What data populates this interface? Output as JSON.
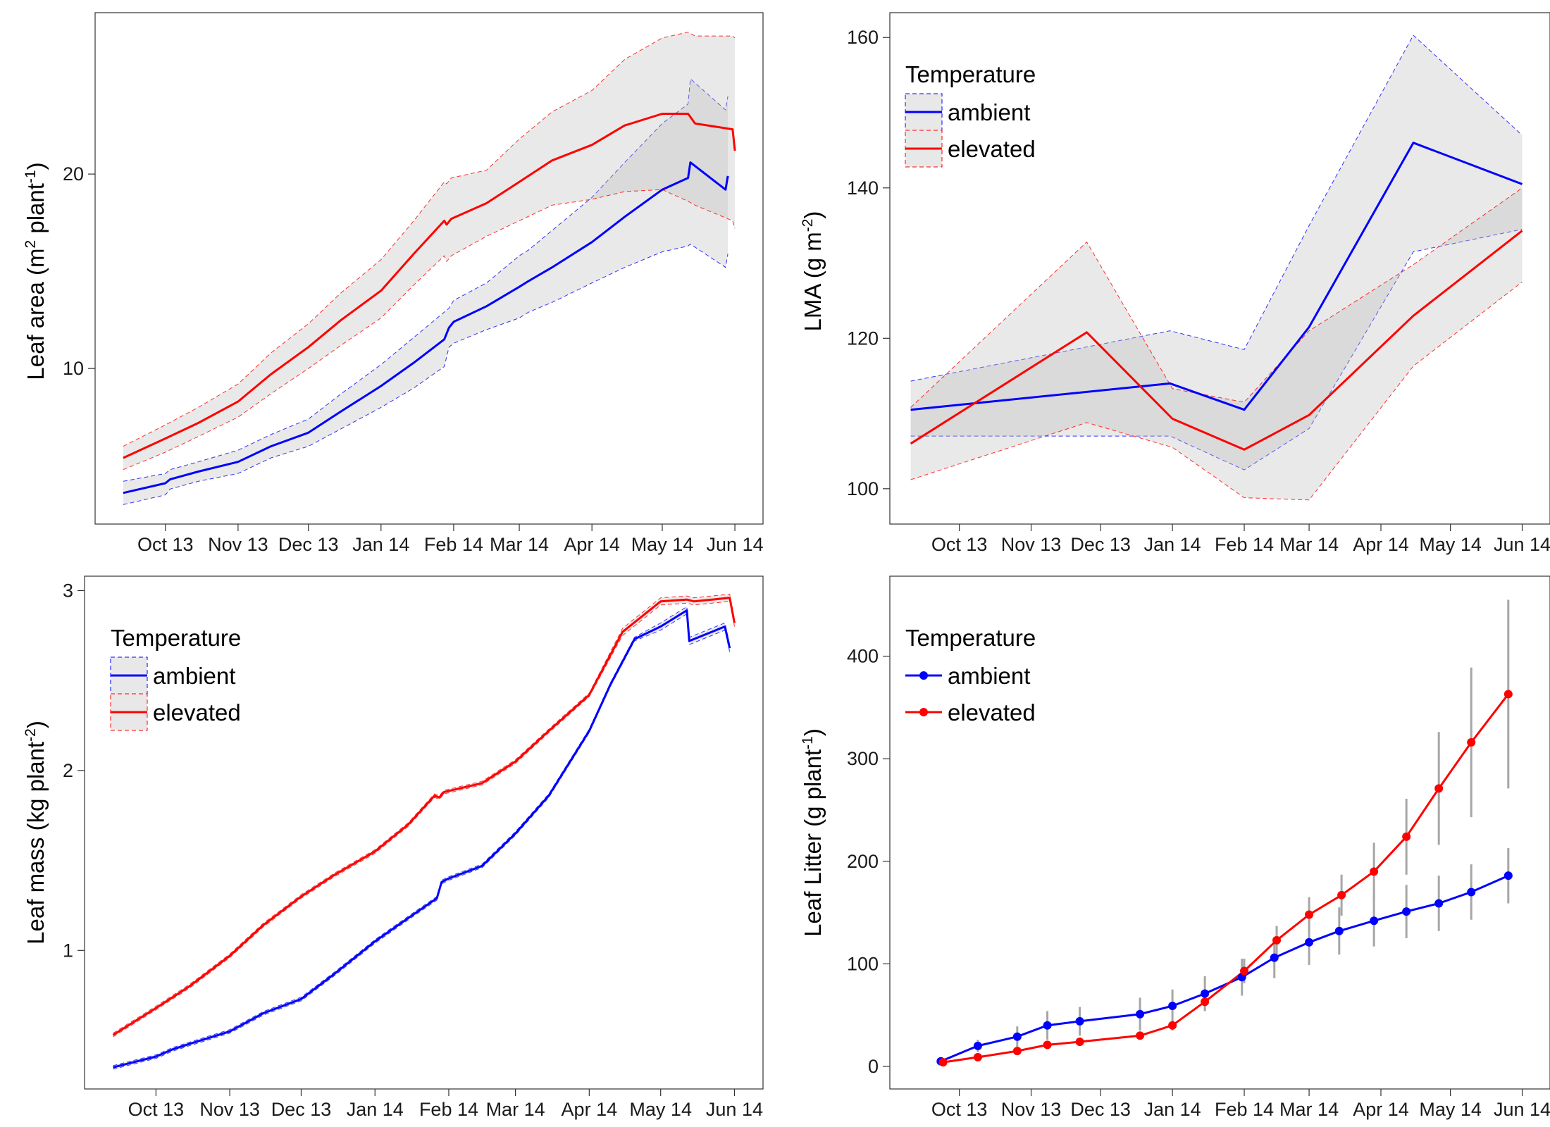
{
  "figure": {
    "background": "#ffffff",
    "colors": {
      "ambient": "#0000ff",
      "elevated": "#ff0000",
      "ribbon_fill": "#bdbdbd",
      "error_bar": "#a6a6a6",
      "panel_border": "#333333"
    }
  },
  "chart_data": [
    {
      "type": "line",
      "panel": "top-left",
      "title": "",
      "ylabel": {
        "main": "Leaf area (m",
        "sup1": "2",
        "mid": " plant",
        "sup2": "-1",
        "end": ")"
      },
      "x_ticks": [
        {
          "label": "Oct 13",
          "date": "2013-10-01"
        },
        {
          "label": "Nov 13",
          "date": "2013-11-01"
        },
        {
          "label": "Dec 13",
          "date": "2013-12-01"
        },
        {
          "label": "Jan 14",
          "date": "2014-01-01"
        },
        {
          "label": "Feb 14",
          "date": "2014-02-01"
        },
        {
          "label": "Mar 14",
          "date": "2014-03-01"
        },
        {
          "label": "Apr 14",
          "date": "2014-04-01"
        },
        {
          "label": "May 14",
          "date": "2014-05-01"
        },
        {
          "label": "Jun 14",
          "date": "2014-06-01"
        }
      ],
      "xlim": [
        "2013-09-01",
        "2014-06-13"
      ],
      "y_ticks": [
        10,
        20
      ],
      "ylim": [
        2.0,
        28.3
      ],
      "series": [
        {
          "name": "ambient",
          "color": "#0000ff",
          "x": [
            "2013-09-13",
            "2013-10-01",
            "2013-10-03",
            "2013-10-15",
            "2013-11-01",
            "2013-11-15",
            "2013-12-01",
            "2013-12-15",
            "2014-01-01",
            "2014-01-15",
            "2014-01-28",
            "2014-01-30",
            "2014-02-01",
            "2014-02-15",
            "2014-03-01",
            "2014-03-05",
            "2014-03-15",
            "2014-04-01",
            "2014-04-15",
            "2014-05-01",
            "2014-05-12",
            "2014-05-13",
            "2014-05-28",
            "2014-05-29"
          ],
          "y": [
            3.6,
            4.1,
            4.3,
            4.7,
            5.2,
            6.0,
            6.7,
            7.8,
            9.1,
            10.3,
            11.5,
            12.1,
            12.4,
            13.2,
            14.2,
            14.5,
            15.2,
            16.5,
            17.8,
            19.2,
            19.8,
            20.6,
            19.2,
            19.9
          ],
          "lower": [
            3.0,
            3.5,
            3.8,
            4.2,
            4.6,
            5.4,
            6.0,
            6.9,
            8.0,
            9.0,
            10.1,
            11.1,
            11.3,
            12.0,
            12.6,
            12.9,
            13.4,
            14.4,
            15.2,
            16.0,
            16.3,
            16.4,
            15.2,
            15.9
          ],
          "upper": [
            4.2,
            4.6,
            4.8,
            5.2,
            5.8,
            6.6,
            7.4,
            8.7,
            10.2,
            11.6,
            12.9,
            13.1,
            13.5,
            14.4,
            15.8,
            16.1,
            17.1,
            18.8,
            20.6,
            22.6,
            23.6,
            24.9,
            23.3,
            24.0
          ]
        },
        {
          "name": "elevated",
          "color": "#ff0000",
          "x": [
            "2013-09-13",
            "2013-10-01",
            "2013-10-15",
            "2013-11-01",
            "2013-11-15",
            "2013-12-01",
            "2013-12-15",
            "2014-01-01",
            "2014-01-15",
            "2014-01-28",
            "2014-01-29",
            "2014-01-31",
            "2014-02-15",
            "2014-03-01",
            "2014-03-15",
            "2014-04-01",
            "2014-04-15",
            "2014-05-01",
            "2014-05-12",
            "2014-05-15",
            "2014-05-31",
            "2014-06-01"
          ],
          "y": [
            5.4,
            6.4,
            7.2,
            8.3,
            9.7,
            11.1,
            12.5,
            14.0,
            15.9,
            17.6,
            17.4,
            17.7,
            18.5,
            19.6,
            20.7,
            21.5,
            22.5,
            23.1,
            23.1,
            22.6,
            22.3,
            21.2
          ],
          "lower": [
            4.8,
            5.7,
            6.5,
            7.5,
            8.7,
            10.0,
            11.2,
            12.6,
            14.3,
            15.8,
            15.5,
            15.8,
            16.8,
            17.6,
            18.4,
            18.7,
            19.1,
            19.2,
            18.6,
            18.4,
            17.6,
            17.2
          ],
          "upper": [
            6.0,
            7.1,
            8.0,
            9.2,
            10.8,
            12.3,
            13.9,
            15.6,
            17.6,
            19.6,
            19.5,
            19.8,
            20.2,
            21.8,
            23.2,
            24.3,
            25.9,
            27.0,
            27.3,
            27.1,
            27.1,
            27.0
          ]
        }
      ]
    },
    {
      "type": "line",
      "panel": "top-right",
      "title": "",
      "ylabel": {
        "main": "LMA (g m",
        "sup1": "-2",
        "end": ")"
      },
      "x_ticks": [
        {
          "label": "Oct 13",
          "date": "2013-10-01"
        },
        {
          "label": "Nov 13",
          "date": "2013-11-01"
        },
        {
          "label": "Dec 13",
          "date": "2013-12-01"
        },
        {
          "label": "Jan 14",
          "date": "2014-01-01"
        },
        {
          "label": "Feb 14",
          "date": "2014-02-01"
        },
        {
          "label": "Mar 14",
          "date": "2014-03-01"
        },
        {
          "label": "Apr 14",
          "date": "2014-04-01"
        },
        {
          "label": "May 14",
          "date": "2014-05-01"
        },
        {
          "label": "Jun 14",
          "date": "2014-06-01"
        }
      ],
      "xlim": [
        "2013-09-01",
        "2014-06-13"
      ],
      "y_ticks": [
        100,
        120,
        140,
        160
      ],
      "ylim": [
        95.3,
        163.3
      ],
      "legend": {
        "title": "Temperature",
        "position": "top-left",
        "items": [
          "ambient",
          "elevated"
        ]
      },
      "series": [
        {
          "name": "ambient",
          "color": "#0000ff",
          "x": [
            "2013-09-10",
            "2013-12-31",
            "2014-02-01",
            "2014-03-01",
            "2014-04-15",
            "2014-06-01"
          ],
          "y": [
            110.5,
            114.0,
            110.5,
            121.5,
            146.0,
            140.5
          ],
          "lower": [
            107.0,
            107.0,
            102.5,
            108.0,
            131.5,
            134.5
          ],
          "upper": [
            114.3,
            121.0,
            118.5,
            135.0,
            160.3,
            147.0
          ]
        },
        {
          "name": "elevated",
          "color": "#ff0000",
          "x": [
            "2013-09-10",
            "2013-11-25",
            "2014-01-01",
            "2014-02-01",
            "2014-03-01",
            "2014-04-15",
            "2014-06-01"
          ],
          "y": [
            106.0,
            120.8,
            109.3,
            105.2,
            109.8,
            123.0,
            134.3
          ],
          "lower": [
            101.2,
            108.8,
            105.5,
            98.8,
            98.5,
            116.3,
            127.5
          ],
          "upper": [
            110.8,
            132.8,
            113.3,
            111.5,
            121.0,
            129.8,
            140.0
          ]
        }
      ]
    },
    {
      "type": "line",
      "panel": "bottom-left",
      "title": "",
      "ylabel": {
        "main": "Leaf mass (kg plant",
        "sup1": "-2",
        "end": ")"
      },
      "x_ticks": [
        {
          "label": "Oct 13",
          "date": "2013-10-01"
        },
        {
          "label": "Nov 13",
          "date": "2013-11-01"
        },
        {
          "label": "Dec 13",
          "date": "2013-12-01"
        },
        {
          "label": "Jan 14",
          "date": "2014-01-01"
        },
        {
          "label": "Feb 14",
          "date": "2014-02-01"
        },
        {
          "label": "Mar 14",
          "date": "2014-03-01"
        },
        {
          "label": "Apr 14",
          "date": "2014-04-01"
        },
        {
          "label": "May 14",
          "date": "2014-05-01"
        },
        {
          "label": "Jun 14",
          "date": "2014-06-01"
        }
      ],
      "xlim": [
        "2013-09-01",
        "2014-06-13"
      ],
      "y_ticks": [
        1,
        2,
        3
      ],
      "ylim": [
        0.23,
        3.08
      ],
      "legend": {
        "title": "Temperature",
        "position": "top-left",
        "items": [
          "ambient",
          "elevated"
        ]
      },
      "series": [
        {
          "name": "ambient",
          "color": "#0000ff",
          "x": [
            "2013-09-13",
            "2013-10-01",
            "2013-10-08",
            "2013-10-15",
            "2013-11-01",
            "2013-11-15",
            "2013-12-01",
            "2013-12-15",
            "2014-01-01",
            "2014-01-15",
            "2014-01-27",
            "2014-01-29",
            "2014-02-01",
            "2014-02-15",
            "2014-03-01",
            "2014-03-15",
            "2014-04-01",
            "2014-04-10",
            "2014-04-20",
            "2014-05-01",
            "2014-05-12",
            "2014-05-13",
            "2014-05-28",
            "2014-05-30"
          ],
          "y": [
            0.35,
            0.41,
            0.45,
            0.48,
            0.55,
            0.65,
            0.73,
            0.87,
            1.05,
            1.18,
            1.29,
            1.38,
            1.4,
            1.47,
            1.65,
            1.86,
            2.22,
            2.48,
            2.73,
            2.8,
            2.89,
            2.72,
            2.8,
            2.68
          ],
          "lower": [
            0.34,
            0.4,
            0.44,
            0.47,
            0.54,
            0.64,
            0.72,
            0.86,
            1.04,
            1.17,
            1.28,
            1.37,
            1.39,
            1.46,
            1.64,
            1.85,
            2.21,
            2.47,
            2.72,
            2.78,
            2.87,
            2.7,
            2.78,
            2.66
          ],
          "upper": [
            0.36,
            0.42,
            0.46,
            0.49,
            0.56,
            0.66,
            0.74,
            0.88,
            1.06,
            1.19,
            1.3,
            1.39,
            1.41,
            1.48,
            1.66,
            1.87,
            2.23,
            2.49,
            2.74,
            2.82,
            2.91,
            2.74,
            2.82,
            2.7
          ]
        },
        {
          "name": "elevated",
          "color": "#ff0000",
          "x": [
            "2013-09-13",
            "2013-10-01",
            "2013-10-15",
            "2013-11-01",
            "2013-11-15",
            "2013-12-01",
            "2013-12-15",
            "2014-01-01",
            "2014-01-15",
            "2014-01-26",
            "2014-01-28",
            "2014-01-30",
            "2014-02-15",
            "2014-03-01",
            "2014-03-15",
            "2014-04-01",
            "2014-04-15",
            "2014-05-01",
            "2014-05-12",
            "2014-05-15",
            "2014-05-30",
            "2014-06-01"
          ],
          "y": [
            0.53,
            0.68,
            0.8,
            0.97,
            1.14,
            1.3,
            1.42,
            1.55,
            1.7,
            1.86,
            1.85,
            1.88,
            1.93,
            2.05,
            2.22,
            2.42,
            2.77,
            2.94,
            2.95,
            2.94,
            2.96,
            2.82
          ],
          "lower": [
            0.52,
            0.67,
            0.79,
            0.96,
            1.13,
            1.29,
            1.41,
            1.54,
            1.69,
            1.85,
            1.84,
            1.87,
            1.92,
            2.04,
            2.21,
            2.41,
            2.75,
            2.92,
            2.93,
            2.92,
            2.94,
            2.8
          ],
          "upper": [
            0.54,
            0.69,
            0.81,
            0.98,
            1.15,
            1.31,
            1.43,
            1.56,
            1.71,
            1.87,
            1.86,
            1.89,
            1.94,
            2.06,
            2.23,
            2.43,
            2.79,
            2.96,
            2.97,
            2.96,
            2.98,
            2.84
          ]
        }
      ]
    },
    {
      "type": "line",
      "panel": "bottom-right",
      "title": "",
      "ylabel": {
        "main": "Leaf Litter (g plant",
        "sup1": "-1",
        "end": ")"
      },
      "x_ticks": [
        {
          "label": "Oct 13",
          "date": "2013-10-01"
        },
        {
          "label": "Nov 13",
          "date": "2013-11-01"
        },
        {
          "label": "Dec 13",
          "date": "2013-12-01"
        },
        {
          "label": "Jan 14",
          "date": "2014-01-01"
        },
        {
          "label": "Feb 14",
          "date": "2014-02-01"
        },
        {
          "label": "Mar 14",
          "date": "2014-03-01"
        },
        {
          "label": "Apr 14",
          "date": "2014-04-01"
        },
        {
          "label": "May 14",
          "date": "2014-05-01"
        },
        {
          "label": "Jun 14",
          "date": "2014-06-01"
        }
      ],
      "xlim": [
        "2013-09-01",
        "2014-06-13"
      ],
      "y_ticks": [
        0,
        100,
        200,
        300,
        400
      ],
      "ylim": [
        -22,
        478
      ],
      "legend": {
        "title": "Temperature",
        "position": "top-left",
        "items": [
          "ambient",
          "elevated"
        ]
      },
      "series": [
        {
          "name": "ambient",
          "color": "#0000ff",
          "x": [
            "2013-09-23",
            "2013-10-09",
            "2013-10-26",
            "2013-11-08",
            "2013-11-22",
            "2013-12-18",
            "2014-01-01",
            "2014-01-15",
            "2014-01-31",
            "2014-02-14",
            "2014-03-01",
            "2014-03-14",
            "2014-03-29",
            "2014-04-12",
            "2014-04-26",
            "2014-05-10",
            "2014-05-26"
          ],
          "y": [
            5,
            20,
            29,
            40,
            44,
            51,
            59,
            71,
            87,
            106,
            121,
            132,
            142,
            151,
            159,
            170,
            186
          ],
          "err": [
            3,
            6,
            10,
            14,
            14,
            16,
            16,
            17,
            18,
            20,
            22,
            23,
            25,
            26,
            27,
            27,
            27
          ]
        },
        {
          "name": "elevated",
          "color": "#ff0000",
          "x": [
            "2013-09-24",
            "2013-10-09",
            "2013-10-26",
            "2013-11-08",
            "2013-11-22",
            "2013-12-18",
            "2014-01-01",
            "2014-01-15",
            "2014-02-01",
            "2014-02-15",
            "2014-03-01",
            "2014-03-15",
            "2014-03-29",
            "2014-04-12",
            "2014-04-26",
            "2014-05-10",
            "2014-05-26"
          ],
          "y": [
            4,
            9,
            15,
            21,
            24,
            30,
            40,
            63,
            93,
            123,
            148,
            167,
            190,
            224,
            271,
            316,
            363
          ],
          "err": [
            3,
            4,
            4,
            4,
            4,
            4,
            5,
            9,
            12,
            14,
            17,
            20,
            28,
            37,
            55,
            73,
            92
          ]
        }
      ]
    }
  ]
}
